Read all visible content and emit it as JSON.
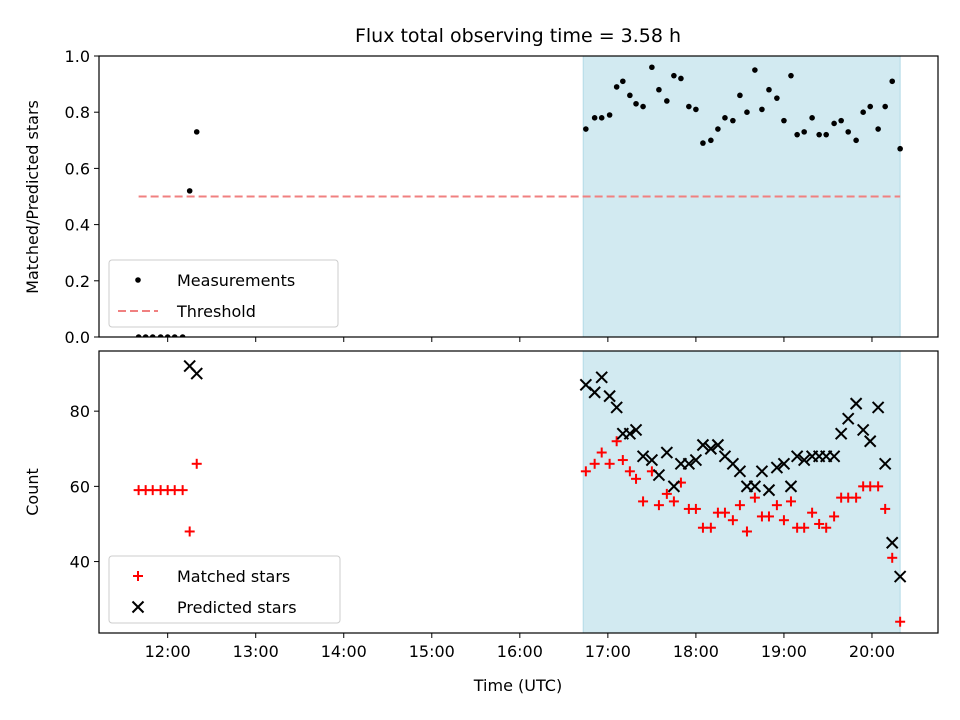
{
  "chart_data": [
    {
      "type": "scatter",
      "title": "Flux total observing time = 3.58 h",
      "xlabel": "",
      "ylabel": "Matched/Predicted stars",
      "xlim": [
        11.22,
        20.75
      ],
      "ylim": [
        0,
        1.0
      ],
      "xticks": [
        12,
        13,
        14,
        15,
        16,
        17,
        18,
        19,
        20
      ],
      "yticks": [
        0.0,
        0.2,
        0.4,
        0.6,
        0.8,
        1.0
      ],
      "ytick_labels": [
        "0.0",
        "0.2",
        "0.4",
        "0.6",
        "0.8",
        "1.0"
      ],
      "shaded_region": {
        "x": [
          16.72,
          20.32
        ],
        "color": "#add8e6"
      },
      "legend": {
        "position": "lower-left",
        "entries": [
          "Measurements",
          "Threshold"
        ]
      },
      "series": [
        {
          "name": "Measurements",
          "marker": "dot",
          "color": "#000000",
          "x": [
            11.67,
            11.75,
            11.83,
            11.92,
            12.0,
            12.08,
            12.17,
            12.25,
            12.33,
            16.75,
            16.85,
            16.93,
            17.02,
            17.1,
            17.17,
            17.25,
            17.32,
            17.4,
            17.5,
            17.58,
            17.67,
            17.75,
            17.83,
            17.92,
            18.0,
            18.08,
            18.17,
            18.25,
            18.33,
            18.42,
            18.5,
            18.58,
            18.67,
            18.75,
            18.83,
            18.92,
            19.0,
            19.08,
            19.15,
            19.23,
            19.32,
            19.4,
            19.48,
            19.57,
            19.65,
            19.73,
            19.82,
            19.9,
            19.98,
            20.07,
            20.15,
            20.23,
            20.32
          ],
          "y": [
            0.0,
            0.0,
            0.0,
            0.0,
            0.0,
            0.0,
            0.0,
            0.52,
            0.73,
            0.74,
            0.78,
            0.78,
            0.79,
            0.89,
            0.91,
            0.86,
            0.83,
            0.82,
            0.96,
            0.88,
            0.84,
            0.93,
            0.92,
            0.82,
            0.81,
            0.69,
            0.7,
            0.74,
            0.78,
            0.77,
            0.86,
            0.8,
            0.95,
            0.81,
            0.88,
            0.85,
            0.77,
            0.93,
            0.72,
            0.73,
            0.78,
            0.72,
            0.72,
            0.76,
            0.77,
            0.73,
            0.7,
            0.8,
            0.82,
            0.74,
            0.82,
            0.91,
            0.67
          ]
        },
        {
          "name": "Threshold",
          "type": "line",
          "style": "dashed",
          "color": "#f08080",
          "x": [
            11.67,
            20.32
          ],
          "y": [
            0.5,
            0.5
          ]
        }
      ]
    },
    {
      "type": "scatter",
      "title": "",
      "xlabel": "Time (UTC)",
      "ylabel": "Count",
      "xlim": [
        11.22,
        20.75
      ],
      "ylim": [
        21,
        96
      ],
      "xticks": [
        12,
        13,
        14,
        15,
        16,
        17,
        18,
        19,
        20
      ],
      "xtick_labels": [
        "12:00",
        "13:00",
        "14:00",
        "15:00",
        "16:00",
        "17:00",
        "18:00",
        "19:00",
        "20:00"
      ],
      "yticks": [
        40,
        60,
        80
      ],
      "ytick_labels": [
        "40",
        "60",
        "80"
      ],
      "shaded_region": {
        "x": [
          16.72,
          20.32
        ],
        "color": "#add8e6"
      },
      "legend": {
        "position": "lower-left",
        "entries": [
          "Matched stars",
          "Predicted stars"
        ]
      },
      "series": [
        {
          "name": "Matched stars",
          "marker": "plus",
          "color": "#ff0000",
          "x": [
            11.67,
            11.75,
            11.83,
            11.92,
            12.0,
            12.08,
            12.17,
            12.25,
            12.33,
            16.75,
            16.85,
            16.93,
            17.02,
            17.1,
            17.17,
            17.25,
            17.32,
            17.4,
            17.5,
            17.58,
            17.67,
            17.75,
            17.83,
            17.92,
            18.0,
            18.08,
            18.17,
            18.25,
            18.33,
            18.42,
            18.5,
            18.58,
            18.67,
            18.75,
            18.83,
            18.92,
            19.0,
            19.08,
            19.15,
            19.23,
            19.32,
            19.4,
            19.48,
            19.57,
            19.65,
            19.73,
            19.82,
            19.9,
            19.98,
            20.07,
            20.15,
            20.23,
            20.32
          ],
          "y": [
            59,
            59,
            59,
            59,
            59,
            59,
            59,
            48,
            66,
            64,
            66,
            69,
            66,
            72,
            67,
            64,
            62,
            56,
            64,
            55,
            58,
            56,
            61,
            54,
            54,
            49,
            49,
            53,
            53,
            51,
            55,
            48,
            57,
            52,
            52,
            55,
            51,
            56,
            49,
            49,
            53,
            50,
            49,
            52,
            57,
            57,
            57,
            60,
            60,
            60,
            54,
            41,
            24
          ]
        },
        {
          "name": "Predicted stars",
          "marker": "x",
          "color": "#000000",
          "x": [
            12.25,
            12.33,
            16.75,
            16.85,
            16.93,
            17.02,
            17.1,
            17.17,
            17.25,
            17.32,
            17.4,
            17.5,
            17.58,
            17.67,
            17.75,
            17.83,
            17.92,
            18.0,
            18.08,
            18.17,
            18.25,
            18.33,
            18.42,
            18.5,
            18.58,
            18.67,
            18.75,
            18.83,
            18.92,
            19.0,
            19.08,
            19.15,
            19.23,
            19.32,
            19.4,
            19.48,
            19.57,
            19.65,
            19.73,
            19.82,
            19.9,
            19.98,
            20.07,
            20.15,
            20.23,
            20.32
          ],
          "y": [
            92,
            90,
            87,
            85,
            89,
            84,
            81,
            74,
            74,
            75,
            68,
            67,
            63,
            69,
            60,
            66,
            66,
            67,
            71,
            70,
            71,
            68,
            66,
            64,
            60,
            60,
            64,
            59,
            65,
            66,
            60,
            68,
            67,
            68,
            68,
            68,
            68,
            74,
            78,
            82,
            75,
            72,
            81,
            66,
            45,
            36
          ]
        }
      ]
    }
  ]
}
